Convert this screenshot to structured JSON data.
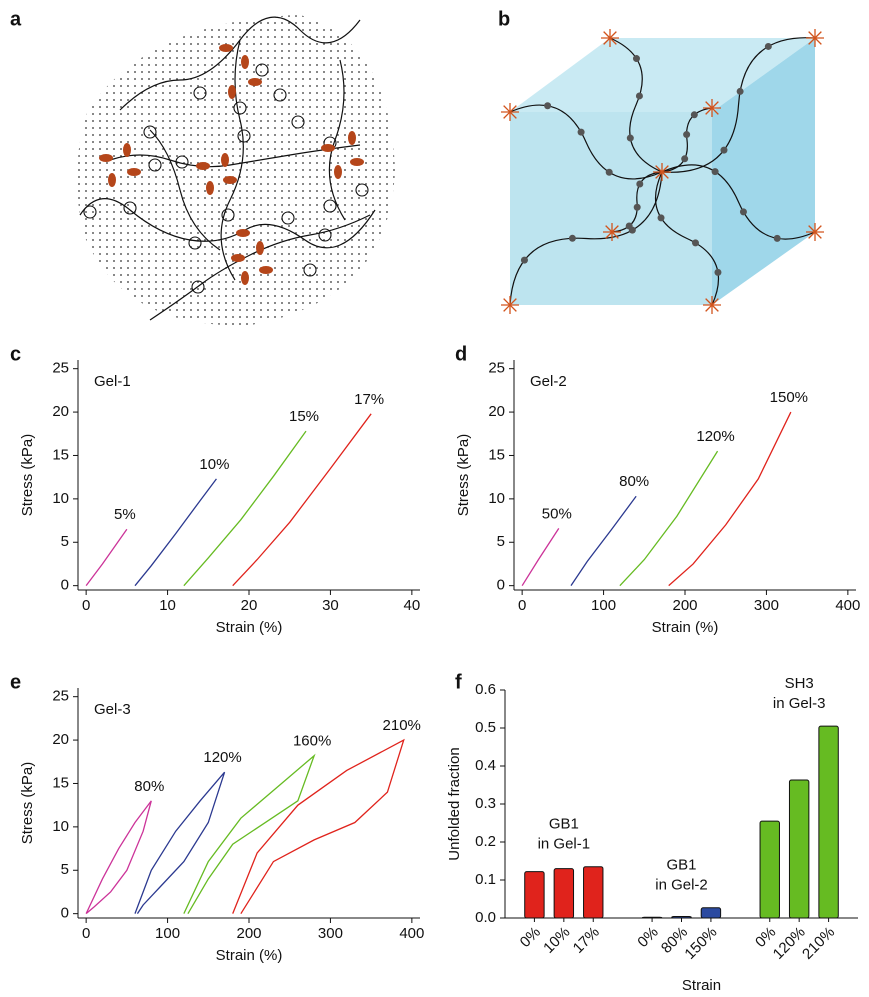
{
  "diagrams": [
    {
      "label": "a"
    },
    {
      "label": "b"
    }
  ],
  "chart_data": [
    {
      "type": "line",
      "label": "c",
      "annotation": "Gel-1",
      "xlabel": "Strain (%)",
      "ylabel": "Stress (kPa)",
      "xlim": [
        -1,
        41
      ],
      "xticks": [
        0,
        10,
        20,
        30,
        40
      ],
      "ylim": [
        -0.5,
        26
      ],
      "yticks": [
        0,
        5,
        10,
        15,
        20,
        25
      ],
      "series": [
        {
          "name": "5%",
          "color": "#cc3399",
          "x": [
            0,
            2,
            5
          ],
          "values": [
            0,
            2.5,
            6.5
          ]
        },
        {
          "name": "10%",
          "color": "#2b3990",
          "x": [
            6,
            8,
            11,
            14,
            16
          ],
          "values": [
            0,
            2.3,
            6,
            9.8,
            12.3
          ]
        },
        {
          "name": "15%",
          "color": "#66bb22",
          "x": [
            12,
            15,
            19,
            23,
            27
          ],
          "values": [
            0,
            3.2,
            7.6,
            12.6,
            17.8
          ]
        },
        {
          "name": "17%",
          "color": "#e0231c",
          "x": [
            18,
            21,
            25,
            30,
            35
          ],
          "values": [
            0,
            3,
            7.3,
            13.5,
            19.8
          ]
        }
      ]
    },
    {
      "type": "line",
      "label": "d",
      "annotation": "Gel-2",
      "xlabel": "Strain (%)",
      "ylabel": "Stress (kPa)",
      "xlim": [
        -10,
        410
      ],
      "xticks": [
        0,
        100,
        200,
        300,
        400
      ],
      "ylim": [
        -0.5,
        26
      ],
      "yticks": [
        0,
        5,
        10,
        15,
        20,
        25
      ],
      "series": [
        {
          "name": "50%",
          "color": "#cc3399",
          "x": [
            0,
            20,
            45
          ],
          "values": [
            0,
            3,
            6.6
          ]
        },
        {
          "name": "80%",
          "color": "#2b3990",
          "x": [
            60,
            80,
            110,
            140
          ],
          "values": [
            0,
            2.8,
            6.5,
            10.3
          ]
        },
        {
          "name": "120%",
          "color": "#66bb22",
          "x": [
            120,
            150,
            190,
            240
          ],
          "values": [
            0,
            3,
            8,
            15.5
          ]
        },
        {
          "name": "150%",
          "color": "#e0231c",
          "x": [
            180,
            210,
            250,
            290,
            330
          ],
          "values": [
            0,
            2.5,
            7,
            12.3,
            20
          ]
        }
      ]
    },
    {
      "type": "line",
      "label": "e",
      "annotation": "Gel-3",
      "xlabel": "Strain (%)",
      "ylabel": "Stress (kPa)",
      "xlim": [
        -10,
        410
      ],
      "xticks": [
        0,
        100,
        200,
        300,
        400
      ],
      "ylim": [
        -0.5,
        26
      ],
      "yticks": [
        0,
        5,
        10,
        15,
        20,
        25
      ],
      "series": [
        {
          "name": "80%",
          "color": "#cc3399",
          "x": [
            0,
            20,
            40,
            60,
            80,
            70,
            50,
            30,
            10,
            0
          ],
          "values": [
            0,
            4,
            7.5,
            10.5,
            13,
            9.5,
            5,
            2.5,
            0.8,
            0
          ]
        },
        {
          "name": "120%",
          "color": "#2b3990",
          "x": [
            60,
            80,
            110,
            140,
            170,
            150,
            120,
            90,
            70,
            63
          ],
          "values": [
            0,
            5,
            9.5,
            13,
            16.3,
            10.5,
            6,
            3,
            1,
            0
          ]
        },
        {
          "name": "160%",
          "color": "#66bb22",
          "x": [
            120,
            150,
            190,
            240,
            280,
            260,
            220,
            180,
            150,
            125
          ],
          "values": [
            0,
            6,
            11,
            15,
            18.2,
            13,
            10.5,
            8,
            4,
            0
          ]
        },
        {
          "name": "210%",
          "color": "#e0231c",
          "x": [
            180,
            210,
            260,
            320,
            390,
            370,
            330,
            280,
            230,
            190
          ],
          "values": [
            0,
            7,
            12.5,
            16.5,
            20,
            14,
            10.5,
            8.5,
            6,
            0
          ]
        }
      ]
    },
    {
      "type": "grouped_bar",
      "label": "f",
      "xlabel": "Strain",
      "ylabel": "Unfolded fraction",
      "ylim": [
        0,
        0.6
      ],
      "yticks": [
        {
          "value": 0,
          "label": "0.0"
        },
        0.1,
        0.2,
        0.3,
        0.4,
        0.5,
        0.6
      ],
      "groups": [
        {
          "label_lines": [
            "GB1",
            "in Gel-1"
          ],
          "color": "#e0231c",
          "categories": [
            "0%",
            "10%",
            "17%"
          ],
          "values": [
            0.122,
            0.13,
            0.135
          ]
        },
        {
          "label_lines": [
            "GB1",
            "in Gel-2"
          ],
          "color": "#2b4aa0",
          "categories": [
            "0%",
            "80%",
            "150%"
          ],
          "values": [
            0.002,
            0.004,
            0.027
          ]
        },
        {
          "label_lines": [
            "SH3",
            "in Gel-3"
          ],
          "color": "#66bb22",
          "categories": [
            "0%",
            "120%",
            "210%"
          ],
          "values": [
            0.255,
            0.363,
            0.505
          ]
        }
      ]
    }
  ]
}
